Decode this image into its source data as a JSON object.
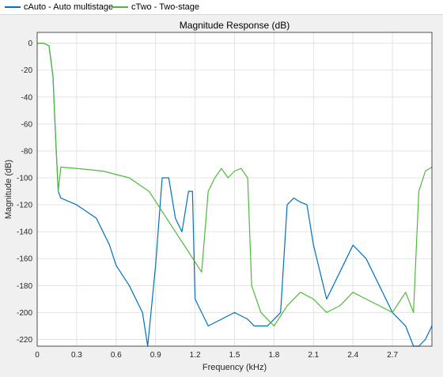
{
  "legend": [
    {
      "label": "cAuto - Auto multistage",
      "color": "#0072BD"
    },
    {
      "label": "cTwo - Two-stage",
      "color": "#4DBA3A"
    }
  ],
  "chart_data": {
    "type": "line",
    "title": "Magnitude Response (dB)",
    "xlabel": "Frequency (kHz)",
    "ylabel": "Magnitude (dB)",
    "xlim": [
      0,
      3.0
    ],
    "ylim": [
      -225,
      8
    ],
    "xticks": [
      "0",
      "0.3",
      "0.6",
      "0.9",
      "1.2",
      "1.5",
      "1.8",
      "2.1",
      "2.4",
      "2.7"
    ],
    "xtick_values": [
      0,
      0.3,
      0.6,
      0.9,
      1.2,
      1.5,
      1.8,
      2.1,
      2.4,
      2.7
    ],
    "yticks": [
      "0",
      "-20",
      "-40",
      "-60",
      "-80",
      "-100",
      "-120",
      "-140",
      "-160",
      "-180",
      "-200",
      "-220"
    ],
    "ytick_values": [
      0,
      -20,
      -40,
      -60,
      -80,
      -100,
      -120,
      -140,
      -160,
      -180,
      -200,
      -220
    ],
    "grid": true,
    "series": [
      {
        "name": "cAuto - Auto multistage",
        "color": "#0072BD",
        "x": [
          0,
          0.05,
          0.09,
          0.12,
          0.14,
          0.16,
          0.18,
          0.3,
          0.45,
          0.55,
          0.6,
          0.7,
          0.8,
          0.84,
          0.9,
          0.95,
          1.0,
          1.05,
          1.1,
          1.15,
          1.18,
          1.2,
          1.3,
          1.4,
          1.5,
          1.6,
          1.65,
          1.75,
          1.85,
          1.9,
          1.95,
          2.0,
          2.05,
          2.1,
          2.2,
          2.3,
          2.4,
          2.5,
          2.6,
          2.7,
          2.8,
          2.86,
          2.9,
          2.95,
          3.0
        ],
        "y": [
          0,
          0,
          -2,
          -25,
          -70,
          -110,
          -115,
          -120,
          -130,
          -150,
          -165,
          -180,
          -200,
          -225,
          -165,
          -100,
          -100,
          -130,
          -140,
          -110,
          -110,
          -190,
          -210,
          -205,
          -200,
          -205,
          -210,
          -210,
          -200,
          -120,
          -115,
          -118,
          -120,
          -150,
          -190,
          -170,
          -150,
          -160,
          -180,
          -200,
          -210,
          -225,
          -225,
          -220,
          -210
        ]
      },
      {
        "name": "cTwo - Two-stage",
        "color": "#4DBA3A",
        "x": [
          0,
          0.05,
          0.09,
          0.12,
          0.14,
          0.16,
          0.18,
          0.3,
          0.5,
          0.7,
          0.85,
          0.95,
          1.05,
          1.15,
          1.25,
          1.3,
          1.35,
          1.4,
          1.45,
          1.5,
          1.55,
          1.6,
          1.63,
          1.7,
          1.8,
          1.9,
          2.0,
          2.1,
          2.2,
          2.3,
          2.4,
          2.5,
          2.6,
          2.7,
          2.8,
          2.86,
          2.9,
          2.95,
          3.0
        ],
        "y": [
          0,
          0,
          -2,
          -25,
          -70,
          -110,
          -92,
          -93,
          -95,
          -100,
          -110,
          -125,
          -140,
          -155,
          -170,
          -110,
          -100,
          -93,
          -100,
          -95,
          -93,
          -100,
          -180,
          -200,
          -210,
          -195,
          -185,
          -190,
          -200,
          -195,
          -185,
          -190,
          -195,
          -200,
          -185,
          -200,
          -110,
          -95,
          -92
        ]
      }
    ]
  }
}
